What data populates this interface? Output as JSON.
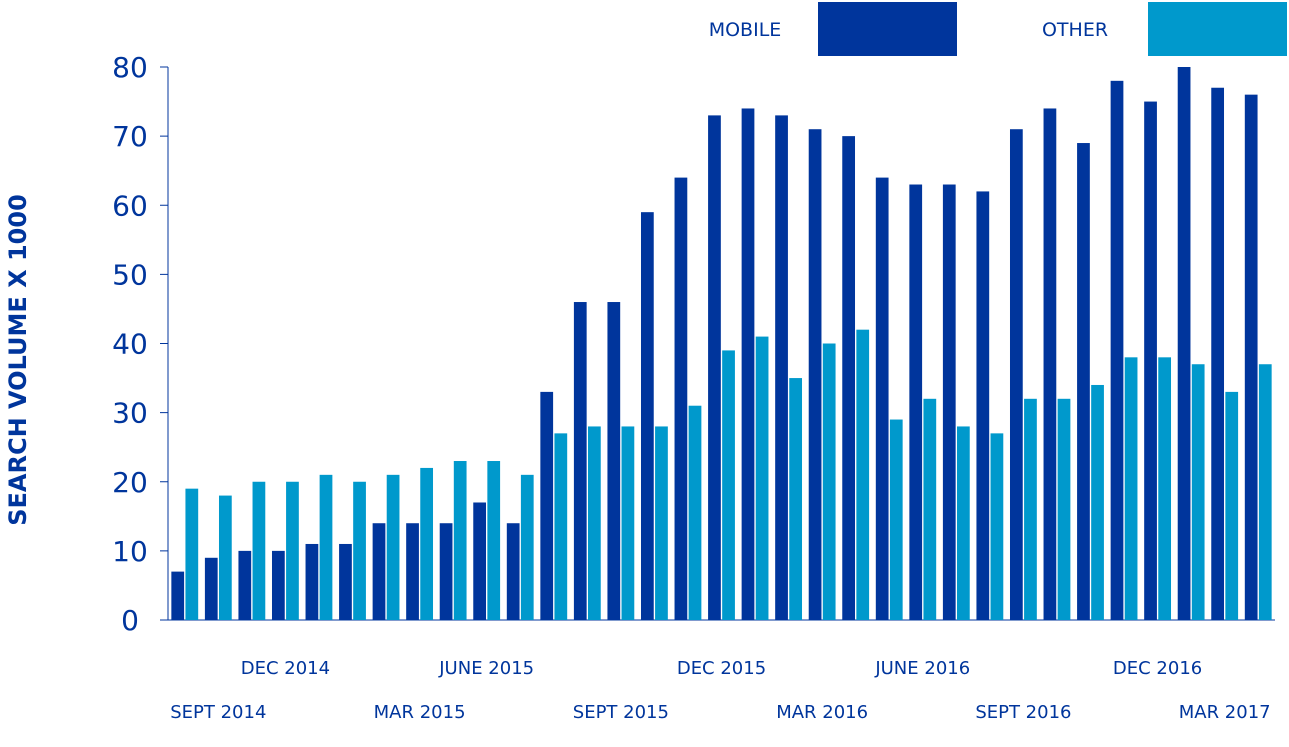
{
  "chart_data": {
    "type": "bar",
    "y_label": "SEARCH VOLUME X 1000",
    "categories": [
      null,
      "SEPT 2014",
      null,
      "DEC 2014",
      null,
      null,
      null,
      "MAR 2015",
      null,
      "JUNE 2015",
      null,
      null,
      null,
      "SEPT 2015",
      null,
      null,
      "DEC 2015",
      null,
      null,
      "MAR 2016",
      null,
      null,
      "JUNE 2016",
      null,
      null,
      "SEPT 2016",
      null,
      null,
      null,
      "DEC 2016",
      null,
      "MAR 2017",
      null
    ],
    "series": [
      {
        "name": "MOBILE",
        "color": "#00359c",
        "values": [
          7,
          9,
          10,
          10,
          11,
          11,
          14,
          14,
          14,
          17,
          14,
          33,
          46,
          46,
          59,
          64,
          73,
          74,
          73,
          71,
          70,
          64,
          63,
          63,
          62,
          71,
          74,
          69,
          78,
          75,
          80,
          77,
          76
        ]
      },
      {
        "name": "OTHER",
        "color": "#0099cc",
        "values": [
          19,
          18,
          20,
          20,
          21,
          20,
          21,
          22,
          23,
          23,
          21,
          27,
          28,
          28,
          28,
          31,
          39,
          41,
          35,
          40,
          42,
          29,
          32,
          28,
          27,
          32,
          32,
          34,
          38,
          38,
          37,
          33,
          37
        ]
      }
    ],
    "ylim": [
      0,
      80
    ],
    "yticks": [
      0,
      10,
      20,
      30,
      40,
      50,
      60,
      70,
      80
    ],
    "legend": "top-right"
  }
}
